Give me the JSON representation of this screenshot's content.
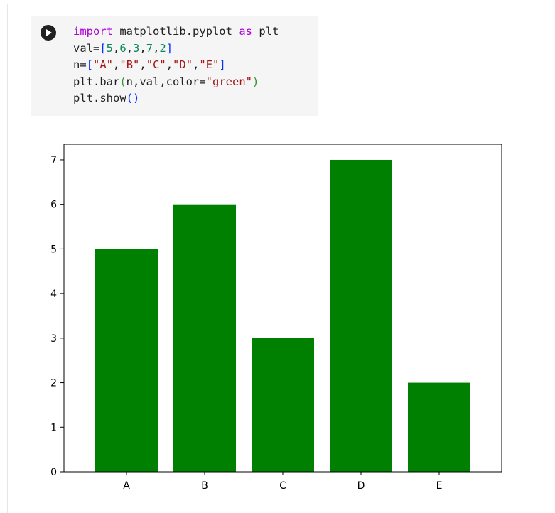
{
  "cell": {
    "run_icon": "play-icon",
    "code_lines": [
      [
        {
          "t": "import",
          "c": "kw"
        },
        {
          "t": " matplotlib.pyplot "
        },
        {
          "t": "as",
          "c": "kw"
        },
        {
          "t": " plt"
        }
      ],
      [
        {
          "t": "val="
        },
        {
          "t": "[",
          "c": "br1"
        },
        {
          "t": "5",
          "c": "num"
        },
        {
          "t": ","
        },
        {
          "t": "6",
          "c": "num"
        },
        {
          "t": ","
        },
        {
          "t": "3",
          "c": "num"
        },
        {
          "t": ","
        },
        {
          "t": "7",
          "c": "num"
        },
        {
          "t": ","
        },
        {
          "t": "2",
          "c": "num"
        },
        {
          "t": "]",
          "c": "br1"
        }
      ],
      [
        {
          "t": "n="
        },
        {
          "t": "[",
          "c": "br1"
        },
        {
          "t": "\"A\"",
          "c": "str"
        },
        {
          "t": ","
        },
        {
          "t": "\"B\"",
          "c": "str"
        },
        {
          "t": ","
        },
        {
          "t": "\"C\"",
          "c": "str"
        },
        {
          "t": ","
        },
        {
          "t": "\"D\"",
          "c": "str"
        },
        {
          "t": ","
        },
        {
          "t": "\"E\"",
          "c": "str"
        },
        {
          "t": "]",
          "c": "br1"
        }
      ],
      [
        {
          "t": "plt.bar"
        },
        {
          "t": "(",
          "c": "br2"
        },
        {
          "t": "n,val,color="
        },
        {
          "t": "\"green\"",
          "c": "str"
        },
        {
          "t": ")",
          "c": "br2"
        }
      ],
      [
        {
          "t": "plt.show"
        },
        {
          "t": "()",
          "c": "br1"
        }
      ]
    ]
  },
  "chart_data": {
    "type": "bar",
    "categories": [
      "A",
      "B",
      "C",
      "D",
      "E"
    ],
    "values": [
      5,
      6,
      3,
      7,
      2
    ],
    "color": "#008000",
    "title": "",
    "xlabel": "",
    "ylabel": "",
    "ylim": [
      0,
      7.35
    ],
    "yticks": [
      0,
      1,
      2,
      3,
      4,
      5,
      6,
      7
    ],
    "grid": false
  }
}
